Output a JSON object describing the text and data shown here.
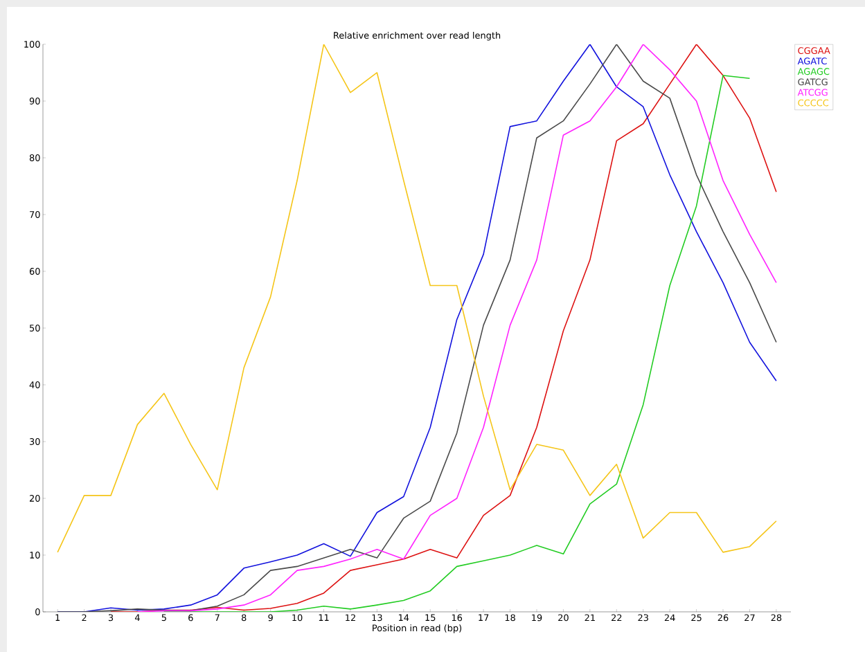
{
  "chart_data": {
    "type": "line",
    "title": "Relative enrichment over read length",
    "xlabel": "Position in read (bp)",
    "categories": [
      "1",
      "2",
      "3",
      "4",
      "5",
      "6",
      "7",
      "8",
      "9",
      "10",
      "11",
      "12",
      "13",
      "14",
      "15",
      "16",
      "17",
      "18",
      "19",
      "20",
      "21",
      "22",
      "23",
      "24",
      "25",
      "26",
      "27",
      "28"
    ],
    "series": [
      {
        "name": "CGGAA",
        "color": "#dd1111",
        "values": [
          null,
          null,
          0,
          0,
          0.3,
          0.3,
          0.8,
          0.3,
          0.6,
          1.5,
          3.3,
          7.3,
          8.3,
          9.3,
          11,
          9.5,
          17,
          20.5,
          32.5,
          49.5,
          62,
          83,
          86,
          93,
          100,
          94.5,
          87,
          74
        ]
      },
      {
        "name": "AGATC",
        "color": "#1111dd",
        "values": [
          0,
          0,
          0.7,
          0.3,
          0.5,
          1.2,
          3,
          7.7,
          8.8,
          10,
          12,
          9.8,
          17.5,
          20.3,
          32.5,
          51.5,
          63,
          85.5,
          86.5,
          93.5,
          100,
          92.5,
          89,
          77,
          67,
          58,
          47.5,
          40.7
        ]
      },
      {
        "name": "AGAGC",
        "color": "#22cc22",
        "values": [
          null,
          null,
          null,
          null,
          0,
          0,
          0,
          0,
          0,
          0.3,
          1,
          0.5,
          1.2,
          2,
          3.7,
          8,
          9,
          10,
          11.7,
          10.2,
          19,
          22.5,
          36.5,
          57.5,
          71.5,
          94.5,
          94,
          null
        ]
      },
      {
        "name": "GATCG",
        "color": "#4a4a4a",
        "values": [
          0,
          0,
          0.2,
          0.5,
          0.3,
          0.2,
          1,
          3,
          7.3,
          8,
          9.5,
          11,
          9.5,
          16.5,
          19.5,
          31.5,
          50.5,
          62,
          83.5,
          86.5,
          93,
          100,
          93.5,
          90.5,
          77,
          67,
          58,
          47.5
        ]
      },
      {
        "name": "ATCGG",
        "color": "#ff22ff",
        "values": [
          null,
          null,
          null,
          0,
          0.2,
          0.2,
          0.5,
          1.2,
          3,
          7.3,
          8,
          9.3,
          11,
          9.3,
          17,
          20,
          32.5,
          50.5,
          62,
          84,
          86.5,
          92.5,
          100,
          95.5,
          90,
          76,
          66.5,
          58
        ]
      },
      {
        "name": "CCCCC",
        "color": "#f5c518",
        "values": [
          10.5,
          20.5,
          20.5,
          33,
          38.5,
          29.5,
          21.5,
          43,
          55.5,
          76,
          100,
          91.5,
          95,
          76,
          57.5,
          57.5,
          38,
          21.5,
          29.5,
          28.5,
          20.5,
          26,
          13,
          17.5,
          17.5,
          10.5,
          11.5,
          16
        ]
      }
    ],
    "ylim": [
      0,
      100
    ],
    "yticks": [
      0,
      10,
      20,
      30,
      40,
      50,
      60,
      70,
      80,
      90,
      100
    ],
    "grid": false,
    "legend": "right",
    "marker": "none",
    "line_style": "solid"
  }
}
